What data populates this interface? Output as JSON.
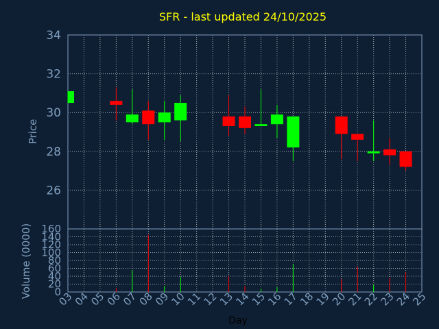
{
  "chart_data": {
    "type": "candlestick",
    "title": "SFR - last updated 24/10/2025",
    "xlabel": "Day",
    "price_ylabel": "Price",
    "volume_ylabel": "Volume (0000)",
    "price_ylim": [
      24,
      34
    ],
    "price_yticks": [
      26,
      28,
      30,
      32,
      34
    ],
    "volume_ylim": [
      0,
      160
    ],
    "volume_yticks": [
      0,
      20,
      40,
      60,
      80,
      100,
      120,
      140,
      160
    ],
    "x_ticks": [
      "03",
      "04",
      "05",
      "06",
      "07",
      "08",
      "09",
      "10",
      "11",
      "12",
      "13",
      "14",
      "15",
      "16",
      "17",
      "18",
      "19",
      "20",
      "21",
      "22",
      "23",
      "24",
      "25"
    ],
    "grid": true,
    "colors": {
      "background": "#0f1f33",
      "up": "#00ff00",
      "down": "#ff0000",
      "grid": "#ffffff",
      "title": "#ffff00",
      "axis_text": "#7f9fbf"
    },
    "candles": [
      {
        "day": "03",
        "open": 30.5,
        "high": 31.1,
        "low": 30.5,
        "close": 31.1,
        "volume": 0
      },
      {
        "day": "06",
        "open": 30.6,
        "high": 31.3,
        "low": 29.6,
        "close": 30.4,
        "volume": 10
      },
      {
        "day": "07",
        "open": 29.5,
        "high": 31.2,
        "low": 29.4,
        "close": 29.9,
        "volume": 55
      },
      {
        "day": "08",
        "open": 30.1,
        "high": 30.6,
        "low": 28.6,
        "close": 29.4,
        "volume": 145
      },
      {
        "day": "09",
        "open": 29.5,
        "high": 30.6,
        "low": 28.6,
        "close": 30.0,
        "volume": 15
      },
      {
        "day": "10",
        "open": 29.6,
        "high": 30.9,
        "low": 28.5,
        "close": 30.5,
        "volume": 38
      },
      {
        "day": "13",
        "open": 29.8,
        "high": 30.9,
        "low": 28.8,
        "close": 29.3,
        "volume": 40
      },
      {
        "day": "14",
        "open": 29.8,
        "high": 30.3,
        "low": 28.9,
        "close": 29.2,
        "volume": 15
      },
      {
        "day": "15",
        "open": 29.3,
        "high": 31.2,
        "low": 29.3,
        "close": 29.4,
        "volume": 8
      },
      {
        "day": "16",
        "open": 29.4,
        "high": 30.4,
        "low": 28.7,
        "close": 29.9,
        "volume": 12
      },
      {
        "day": "17",
        "open": 28.2,
        "high": 29.8,
        "low": 27.5,
        "close": 29.8,
        "volume": 70
      },
      {
        "day": "20",
        "open": 29.8,
        "high": 29.8,
        "low": 27.6,
        "close": 28.9,
        "volume": 33
      },
      {
        "day": "21",
        "open": 28.9,
        "high": 28.9,
        "low": 27.5,
        "close": 28.6,
        "volume": 65
      },
      {
        "day": "22",
        "open": 27.9,
        "high": 29.6,
        "low": 27.5,
        "close": 28.0,
        "volume": 18
      },
      {
        "day": "23",
        "open": 28.1,
        "high": 28.7,
        "low": 27.3,
        "close": 27.8,
        "volume": 35
      },
      {
        "day": "24",
        "open": 28.0,
        "high": 28.0,
        "low": 27.0,
        "close": 27.2,
        "volume": 50
      }
    ]
  }
}
